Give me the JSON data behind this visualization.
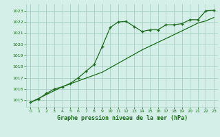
{
  "title": "Graphe pression niveau de la mer (hPa)",
  "background_color": "#d4eee8",
  "grid_color": "#a8cfc4",
  "line_color": "#1a6b1a",
  "marker_color": "#1a6b1a",
  "xlim": [
    -0.5,
    23.5
  ],
  "ylim": [
    1014.4,
    1023.6
  ],
  "yticks": [
    1015,
    1016,
    1017,
    1018,
    1019,
    1020,
    1021,
    1022,
    1023
  ],
  "xticks": [
    0,
    1,
    2,
    3,
    4,
    5,
    6,
    7,
    8,
    9,
    10,
    11,
    12,
    13,
    14,
    15,
    16,
    17,
    18,
    19,
    20,
    21,
    22,
    23
  ],
  "series1_x": [
    0,
    1,
    2,
    3,
    4,
    5,
    6,
    7,
    8,
    9,
    10,
    11,
    12,
    13,
    14,
    15,
    16,
    17,
    18,
    19,
    20,
    21,
    22,
    23
  ],
  "series1_y": [
    1014.8,
    1015.1,
    1015.6,
    1016.0,
    1016.2,
    1016.5,
    1017.0,
    1017.6,
    1018.2,
    1019.8,
    1021.5,
    1022.0,
    1022.05,
    1021.6,
    1021.15,
    1021.3,
    1021.3,
    1021.75,
    1021.75,
    1021.85,
    1022.2,
    1022.2,
    1023.0,
    1023.05
  ],
  "series2_x": [
    0,
    4,
    9,
    14,
    19,
    21,
    22,
    23
  ],
  "series2_y": [
    1014.8,
    1016.2,
    1017.5,
    1019.5,
    1021.2,
    1021.9,
    1022.1,
    1022.4
  ]
}
